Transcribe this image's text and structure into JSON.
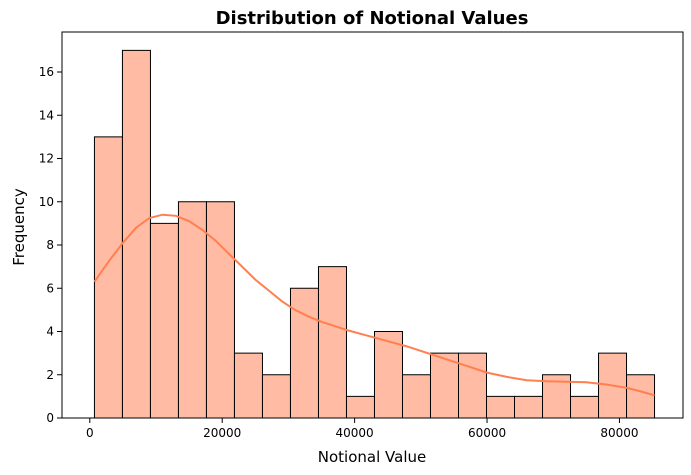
{
  "chart_data": {
    "type": "bar",
    "subtype": "histogram",
    "title": "Distribution of Notional Values",
    "xlabel": "Notional Value",
    "ylabel": "Frequency",
    "xlim": [
      -4200,
      89600
    ],
    "ylim": [
      0,
      17.85
    ],
    "bin_start": 700,
    "bin_width": 4230,
    "counts": [
      13,
      17,
      9,
      10,
      10,
      3,
      2,
      6,
      7,
      1,
      4,
      2,
      3,
      3,
      1,
      1,
      2,
      1,
      3,
      2
    ],
    "x_ticks": [
      0,
      20000,
      40000,
      60000,
      80000
    ],
    "x_tick_labels": [
      "0",
      "20000",
      "40000",
      "60000",
      "80000"
    ],
    "y_ticks": [
      0,
      2,
      4,
      6,
      8,
      10,
      12,
      14,
      16
    ],
    "y_tick_labels": [
      "0",
      "2",
      "4",
      "6",
      "8",
      "10",
      "12",
      "14",
      "16"
    ],
    "kde": {
      "x": [
        700,
        3000,
        5000,
        7000,
        9000,
        11000,
        13000,
        15000,
        17000,
        19000,
        21000,
        23000,
        25000,
        27000,
        29000,
        31000,
        33000,
        35000,
        37000,
        39000,
        42000,
        45000,
        48000,
        51000,
        54000,
        57000,
        60000,
        63000,
        66000,
        69000,
        72000,
        75000,
        78000,
        81000,
        83000,
        85300
      ],
      "y": [
        6.3,
        7.3,
        8.1,
        8.8,
        9.25,
        9.4,
        9.35,
        9.1,
        8.7,
        8.2,
        7.6,
        7.0,
        6.4,
        5.9,
        5.4,
        5.0,
        4.7,
        4.45,
        4.25,
        4.05,
        3.8,
        3.55,
        3.3,
        3.0,
        2.7,
        2.4,
        2.1,
        1.9,
        1.75,
        1.7,
        1.68,
        1.65,
        1.55,
        1.4,
        1.25,
        1.05
      ]
    },
    "colors": {
      "bar_fill": "#ffbba3",
      "bar_edge": "#000000",
      "kde_line": "#ff7f50"
    },
    "grid": false,
    "legend": "none"
  }
}
